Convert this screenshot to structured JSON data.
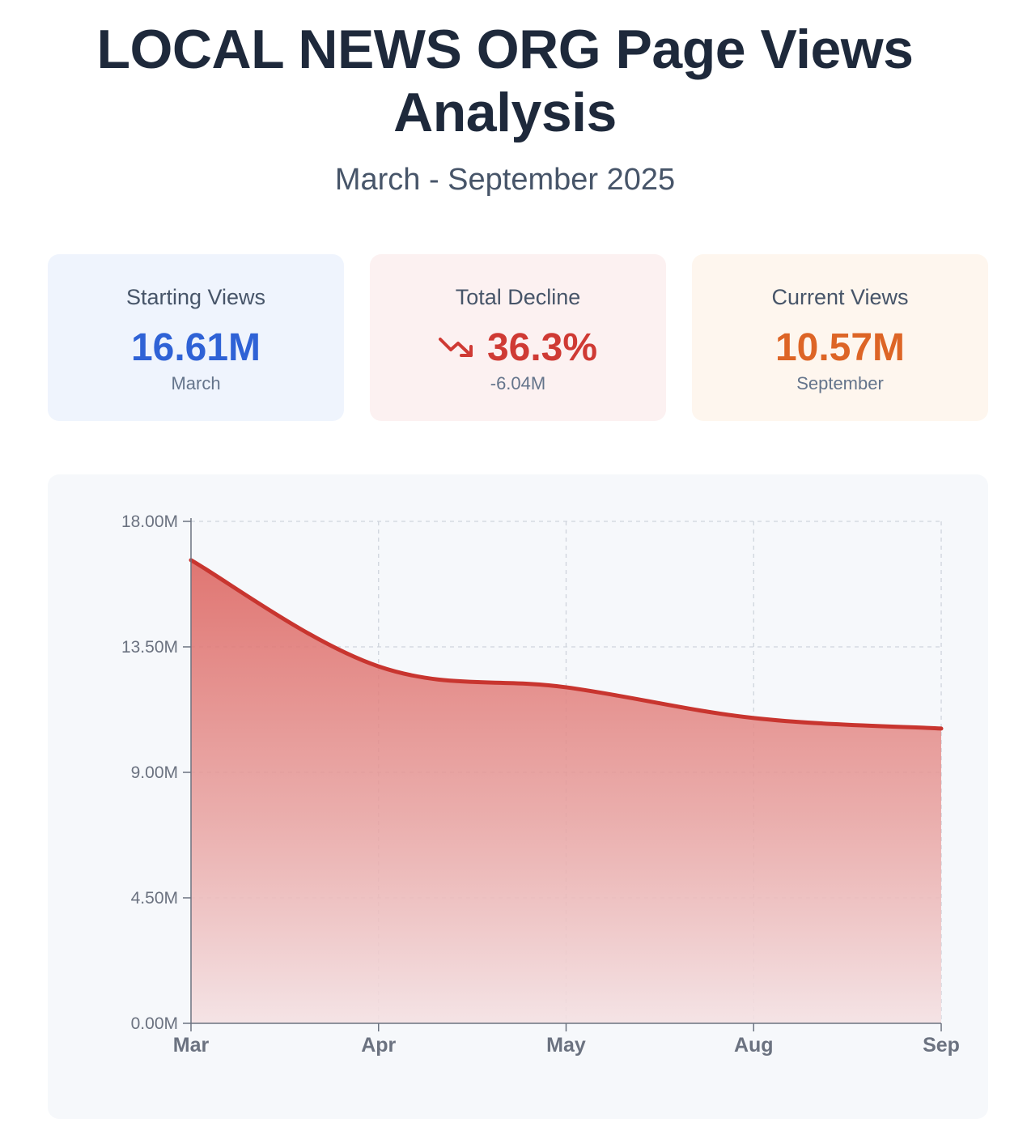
{
  "header": {
    "title_line1": "LOCAL NEWS ORG Page Views",
    "title_line2": "Analysis",
    "subtitle": "March - September 2025"
  },
  "cards": {
    "starting": {
      "label": "Starting Views",
      "value": "16.61M",
      "sub": "March"
    },
    "decline": {
      "label": "Total Decline",
      "value": "36.3%",
      "sub": "-6.04M",
      "icon": "trending-down-icon"
    },
    "current": {
      "label": "Current Views",
      "value": "10.57M",
      "sub": "September"
    }
  },
  "colors": {
    "blue": "#2f62d6",
    "red": "#cf3a34",
    "orange": "#dd6526",
    "line": "#c8352f"
  },
  "chart_data": {
    "type": "area",
    "categories": [
      "Mar",
      "Apr",
      "May",
      "Aug",
      "Sep"
    ],
    "series": [
      {
        "values": [
          16.61,
          12.8,
          12.05,
          10.95,
          10.57
        ]
      }
    ],
    "y_ticks": [
      "0.00M",
      "4.50M",
      "9.00M",
      "13.50M",
      "18.00M"
    ],
    "ylim": [
      0,
      18
    ],
    "grid": true
  }
}
